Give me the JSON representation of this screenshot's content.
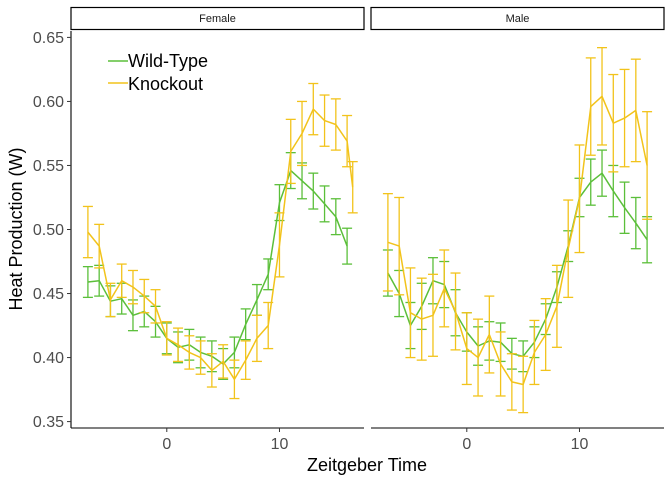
{
  "chart_data": {
    "type": "line",
    "xlabel": "Zeitgeber Time",
    "ylabel": "Heat Production (W)",
    "xlim": [
      -8.5,
      17.5
    ],
    "ylim": [
      0.345,
      0.655
    ],
    "xticks": [
      0,
      10
    ],
    "yticks": [
      0.35,
      0.4,
      0.45,
      0.5,
      0.55,
      0.6,
      0.65
    ],
    "ytick_labels": [
      "0.35",
      "0.40",
      "0.45",
      "0.50",
      "0.55",
      "0.60",
      "0.65"
    ],
    "legend_position": "top-left",
    "grid": false,
    "series_colors": {
      "Wild-Type": "#5BBF3A",
      "Knockout": "#F2C31B"
    },
    "panels": [
      {
        "strip": "Female",
        "x": [
          -7,
          -6,
          -5,
          -4,
          -3,
          -2,
          -1,
          0,
          1,
          2,
          3,
          4,
          5,
          6,
          7,
          8,
          9,
          10,
          11,
          12,
          13,
          14,
          15,
          16
        ],
        "series": [
          {
            "name": "Wild-Type",
            "y": [
              0.459,
              0.46,
              0.444,
              0.446,
              0.433,
              0.436,
              0.428,
              0.415,
              0.408,
              0.41,
              0.404,
              0.401,
              0.395,
              0.404,
              0.426,
              0.445,
              0.465,
              0.521,
              0.546,
              0.538,
              0.53,
              0.52,
              0.51,
              0.487
            ],
            "err": [
              0.012,
              0.012,
              0.012,
              0.012,
              0.012,
              0.012,
              0.012,
              0.012,
              0.012,
              0.012,
              0.012,
              0.012,
              0.012,
              0.012,
              0.012,
              0.012,
              0.012,
              0.014,
              0.014,
              0.014,
              0.014,
              0.014,
              0.014,
              0.014
            ]
          },
          {
            "name": "Knockout",
            "y": [
              0.498,
              0.487,
              0.445,
              0.46,
              0.455,
              0.448,
              0.44,
              0.415,
              0.41,
              0.404,
              0.4,
              0.39,
              0.397,
              0.383,
              0.398,
              0.415,
              0.425,
              0.488,
              0.561,
              0.575,
              0.594,
              0.585,
              0.582,
              0.569,
              0.533
            ],
            "x": [
              -7,
              -6,
              -5,
              -4,
              -3,
              -2,
              -1,
              0,
              1,
              2,
              3,
              4,
              5,
              6,
              7,
              8,
              9,
              10,
              11,
              12,
              13,
              14,
              15,
              16,
              16.5
            ],
            "err": [
              0.02,
              0.017,
              0.013,
              0.013,
              0.013,
              0.013,
              0.013,
              0.013,
              0.013,
              0.013,
              0.013,
              0.013,
              0.013,
              0.015,
              0.015,
              0.018,
              0.018,
              0.025,
              0.025,
              0.025,
              0.02,
              0.02,
              0.02,
              0.02,
              0.02
            ]
          }
        ]
      },
      {
        "strip": "Male",
        "x": [
          -7,
          -6,
          -5,
          -4,
          -3,
          -2,
          -1,
          0,
          1,
          2,
          3,
          4,
          5,
          6,
          7,
          8,
          9,
          10,
          11,
          12,
          13,
          14,
          15,
          16
        ],
        "series": [
          {
            "name": "Wild-Type",
            "y": [
              0.466,
              0.45,
              0.425,
              0.44,
              0.46,
              0.457,
              0.435,
              0.42,
              0.409,
              0.413,
              0.412,
              0.403,
              0.401,
              0.412,
              0.43,
              0.455,
              0.487,
              0.525,
              0.537,
              0.544,
              0.53,
              0.517,
              0.505,
              0.492
            ],
            "err": [
              0.018,
              0.018,
              0.018,
              0.018,
              0.018,
              0.018,
              0.018,
              0.015,
              0.015,
              0.015,
              0.015,
              0.012,
              0.012,
              0.012,
              0.012,
              0.012,
              0.012,
              0.015,
              0.018,
              0.018,
              0.02,
              0.02,
              0.02,
              0.018
            ]
          },
          {
            "name": "Knockout",
            "y": [
              0.49,
              0.487,
              0.435,
              0.43,
              0.433,
              0.454,
              0.436,
              0.407,
              0.4,
              0.418,
              0.395,
              0.381,
              0.379,
              0.404,
              0.418,
              0.44,
              0.485,
              0.524,
              0.596,
              0.604,
              0.583,
              0.587,
              0.593,
              0.55
            ],
            "err": [
              0.038,
              0.038,
              0.035,
              0.032,
              0.032,
              0.03,
              0.03,
              0.028,
              0.03,
              0.03,
              0.025,
              0.022,
              0.022,
              0.025,
              0.028,
              0.032,
              0.038,
              0.042,
              0.038,
              0.038,
              0.038,
              0.038,
              0.04,
              0.042
            ]
          }
        ]
      }
    ]
  }
}
